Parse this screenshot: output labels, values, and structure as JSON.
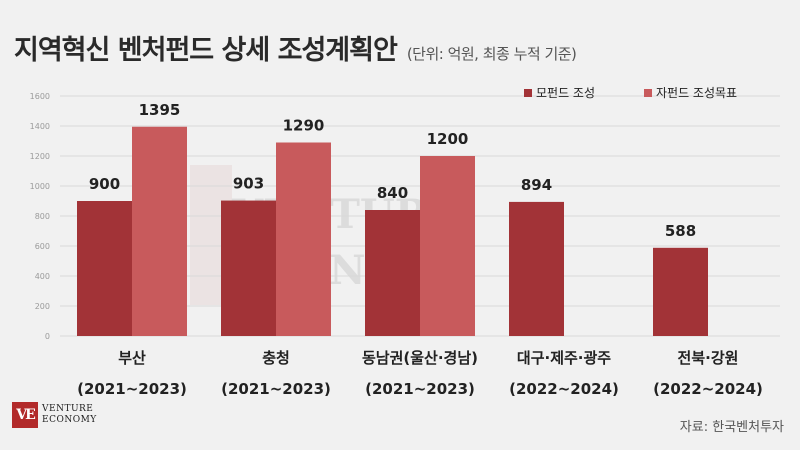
{
  "header": {
    "title": "지역혁신 벤처펀드 상세 조성계획안",
    "unit": "(단위: 억원, 최종 누적 기준)"
  },
  "brand": {
    "mark": "VE",
    "line1": "VENTURE",
    "line2": "ECONOMY"
  },
  "watermark": {
    "line1": "VENTURE",
    "line2": "ECONOMY"
  },
  "source": "자료: 한국벤처투자",
  "colors": {
    "parent_fund": "#a23337",
    "child_fund_target": "#c85a5c",
    "text": "#222222"
  },
  "chart_data": {
    "type": "bar",
    "categories": [
      [
        "부산",
        "(2021~2023)"
      ],
      [
        "충청",
        "(2021~2023)"
      ],
      [
        "동남권(울산·경남)",
        "(2021~2023)"
      ],
      [
        "대구·제주·광주",
        "(2022~2024)"
      ],
      [
        "전북·강원",
        "(2022~2024)"
      ]
    ],
    "series": [
      {
        "name": "모펀드 조성",
        "values": [
          900,
          903,
          840,
          894,
          588
        ]
      },
      {
        "name": "자펀드 조성목표",
        "values": [
          1395,
          1290,
          1200,
          null,
          null
        ]
      }
    ],
    "yticks": [
      0,
      200,
      400,
      600,
      800,
      1000,
      1200,
      1400,
      1600
    ],
    "ylim": [
      0,
      1600
    ],
    "grid": true,
    "legend_position": "top-right",
    "data_labels": true
  }
}
